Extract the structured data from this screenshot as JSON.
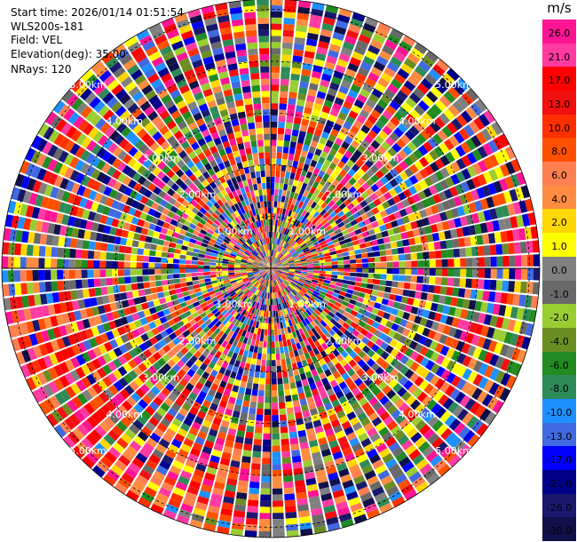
{
  "header": {
    "start_time": "Start time: 2026/01/14 01:51:54",
    "instrument": "WLS200s-181",
    "field": "Field: VEL",
    "elevation": "Elevation(deg): 35.00",
    "nrays": "NRays: 120"
  },
  "chart_data": {
    "type": "heatmap",
    "projection": "polar (PPI)",
    "rays": 120,
    "max_range_km": 5.2,
    "range_ring_labels": [
      "1.00km",
      "2.00km",
      "3.00km",
      "4.00km",
      "5.00km"
    ],
    "range_rings_km": [
      1,
      2,
      3,
      4,
      5
    ],
    "colorbar": {
      "unit": "m/s",
      "ticks": [
        "26.0",
        "21.0",
        "17.0",
        "13.0",
        "10.0",
        "8.0",
        "6.0",
        "4.0",
        "2.0",
        "1.0",
        "0.0",
        "-1.0",
        "-2.0",
        "-4.0",
        "-6.0",
        "-8.0",
        "-10.0",
        "-13.0",
        "-17.0",
        "-21.0",
        "-26.0",
        "-30.0"
      ],
      "colors": [
        "#ff1493",
        "#ff3aa0",
        "#ff0000",
        "#f21010",
        "#ff3000",
        "#ff5000",
        "#ff7f50",
        "#ff8c40",
        "#ffd700",
        "#ffff00",
        "#808080",
        "#696969",
        "#9acd32",
        "#6b8e23",
        "#228b22",
        "#2e8b57",
        "#1e90ff",
        "#4169e1",
        "#0000ff",
        "#00008b",
        "#191970",
        "#10104a"
      ]
    }
  }
}
